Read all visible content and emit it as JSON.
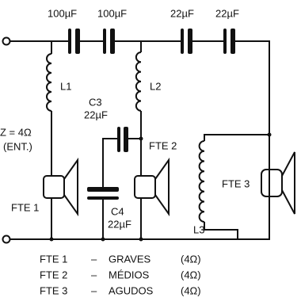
{
  "top_capacitors": [
    "100µF",
    "100µF",
    "22µF",
    "22µF"
  ],
  "inductors": [
    "L1",
    "L2",
    "L3"
  ],
  "c3": {
    "name": "C3",
    "value": "22µF"
  },
  "c4": {
    "name": "C4",
    "value": "22µF"
  },
  "input": {
    "impedance": "Z = 4Ω",
    "note": "(ENT.)"
  },
  "speakers": [
    "FTE 1",
    "FTE 2",
    "FTE 3"
  ],
  "legend": [
    {
      "speaker": "FTE 1",
      "dash": "–",
      "role": "GRAVES",
      "impedance": "(4Ω)"
    },
    {
      "speaker": "FTE 2",
      "dash": "–",
      "role": "MÉDIOS",
      "impedance": "(4Ω)"
    },
    {
      "speaker": "FTE 3",
      "dash": "–",
      "role": "AGUDOS",
      "impedance": "(4Ω)"
    }
  ]
}
